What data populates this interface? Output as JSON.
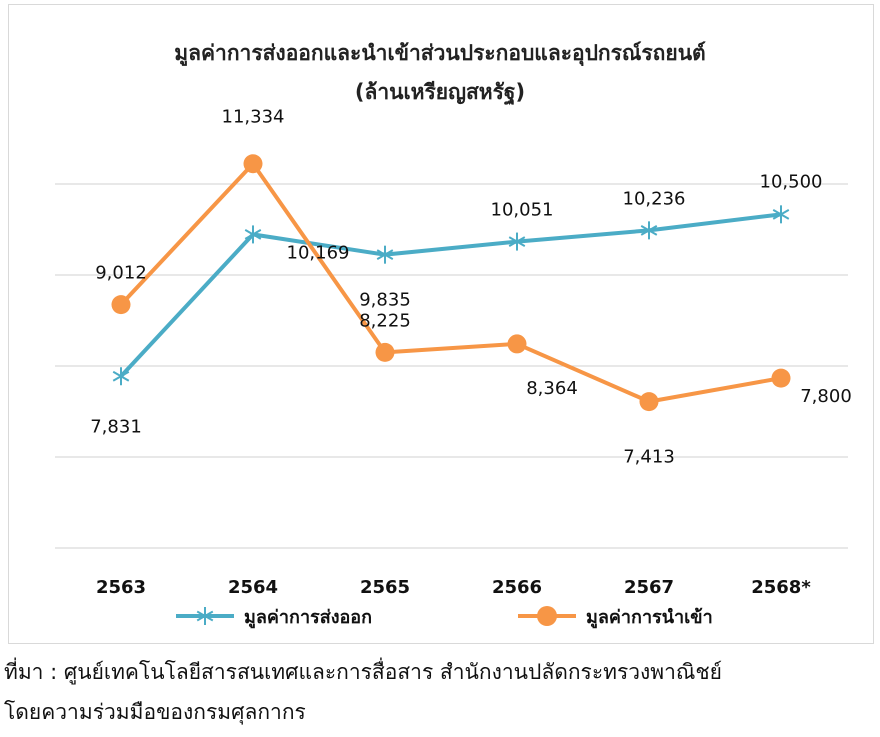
{
  "chart_data": {
    "type": "line",
    "title": "มูลค่าการส่งออกและนำเข้าส่วนประกอบและอุปกรณ์รถยนต์",
    "subtitle": "(ล้านเหรียญสหรัฐ)",
    "categories": [
      "2563",
      "2564",
      "2565",
      "2566",
      "2567",
      "2568*"
    ],
    "series": [
      {
        "name": "มูลค่าการส่งออก",
        "values": [
          7831,
          10169,
          9835,
          10051,
          10236,
          10500
        ],
        "labels": [
          "7,831",
          "10,169",
          "9,835",
          "10,051",
          "10,236",
          "10,500"
        ],
        "color": "#4bacc6",
        "marker": "asterisk"
      },
      {
        "name": "มูลค่าการนำเข้า",
        "values": [
          9012,
          11334,
          8225,
          8364,
          7413,
          7800
        ],
        "labels": [
          "9,012",
          "11,334",
          "8,225",
          "8,364",
          "7,413",
          "7,800"
        ],
        "color": "#f79646",
        "marker": "circle"
      }
    ],
    "ylim": [
      5000,
      12500
    ],
    "grid": true,
    "legend_position": "bottom"
  },
  "source": {
    "line1": "ที่มา : ศูนย์เทคโนโลยีสารสนเทศและการสื่อสาร สำนักงานปลัดกระทรวงพาณิชย์",
    "line2": "โดยความร่วมมือของกรมศุลกากร"
  }
}
